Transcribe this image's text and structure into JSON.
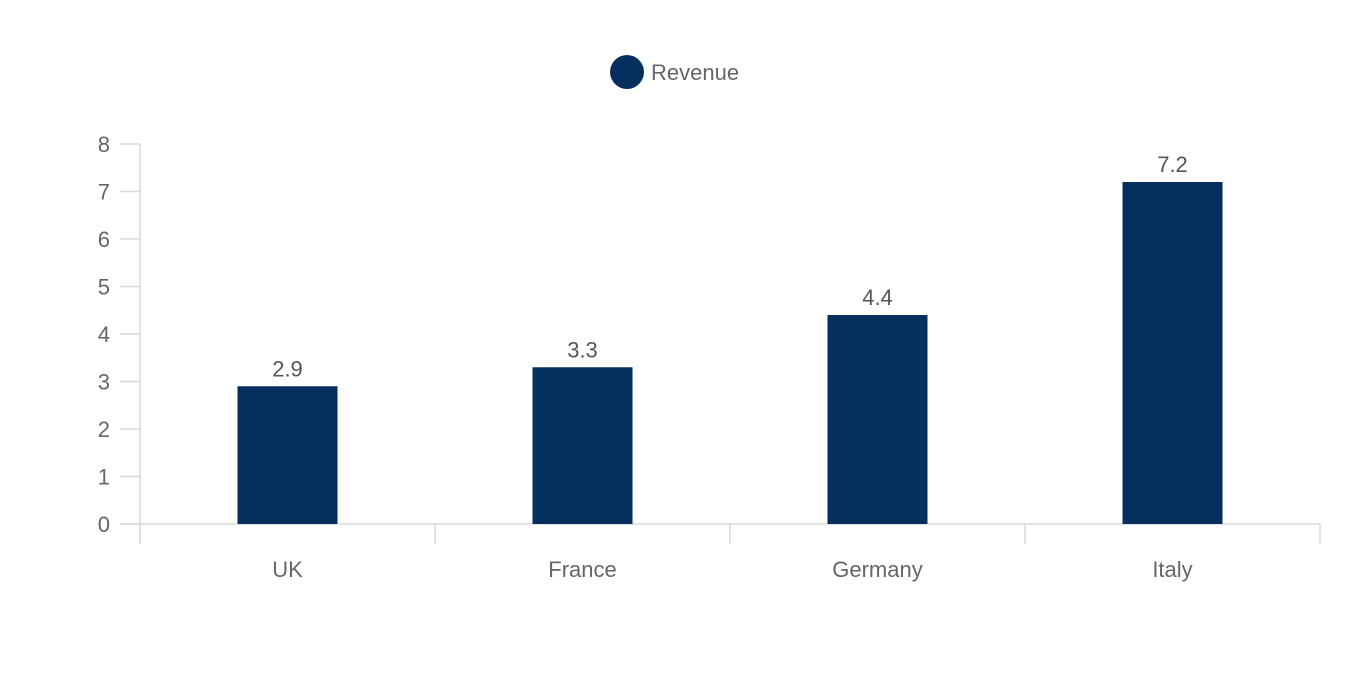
{
  "chart_data": {
    "type": "bar",
    "categories": [
      "UK",
      "France",
      "Germany",
      "Italy"
    ],
    "series": [
      {
        "name": "Revenue",
        "values": [
          2.9,
          3.3,
          4.4,
          7.2
        ],
        "color": "#062f5f"
      }
    ],
    "data_labels": [
      "2.9",
      "3.3",
      "4.4",
      "7.2"
    ],
    "title": "",
    "xlabel": "",
    "ylabel": "",
    "ylim": [
      0,
      8
    ],
    "y_ticks": [
      0,
      1,
      2,
      3,
      4,
      5,
      6,
      7,
      8
    ],
    "grid": false,
    "legend_position": "top-center",
    "axis_color": "#d9d9d9",
    "text_color": "#666666"
  }
}
